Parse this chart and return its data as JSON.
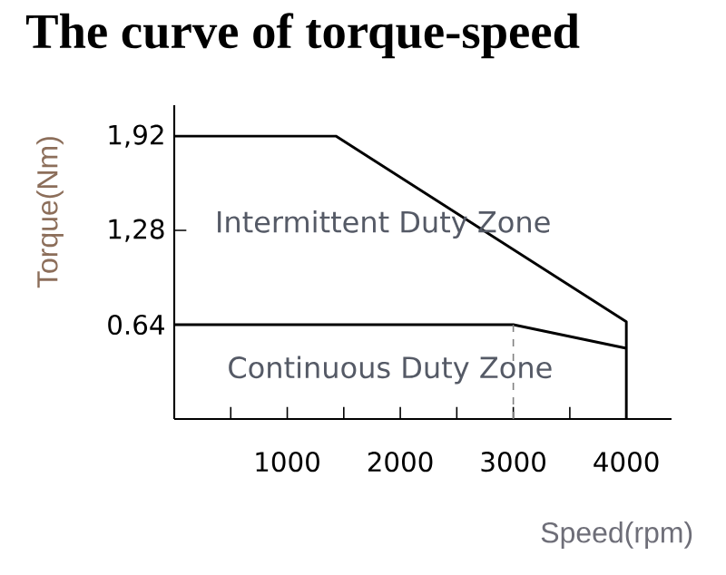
{
  "chart_data": {
    "type": "line",
    "title": "The curve of torque-speed",
    "xlabel": "Speed(rpm)",
    "ylabel": "Torque(Nm)",
    "series": [
      {
        "x": [
          0,
          1430,
          4000,
          4000
        ],
        "values": [
          1.92,
          1.92,
          0.66,
          0
        ],
        "color": "#000000"
      },
      {
        "x": [
          0,
          3000,
          4000
        ],
        "values": [
          0.64,
          0.64,
          0.48
        ],
        "color": "#000000"
      },
      {
        "x": [
          3000,
          3000
        ],
        "values": [
          0,
          0.64
        ],
        "color": "#808080",
        "line_style": "dashed"
      }
    ],
    "xlim": [
      0,
      4400
    ],
    "ylim": [
      0,
      2.13
    ],
    "xticks": [
      {
        "value": 500,
        "label": null
      },
      1000,
      {
        "value": 1500,
        "label": null
      },
      2000,
      {
        "value": 2500,
        "label": null
      },
      3000,
      {
        "value": 3500,
        "label": null
      },
      4000
    ],
    "yticks": [
      0.64,
      {
        "value": 1.28,
        "label": "1,28"
      },
      {
        "value": 1.92,
        "label": "1,92"
      }
    ],
    "grid": false,
    "marker": "none",
    "annotations": [
      "Intermittent Duty Zone",
      "Continuous Duty Zone"
    ]
  }
}
